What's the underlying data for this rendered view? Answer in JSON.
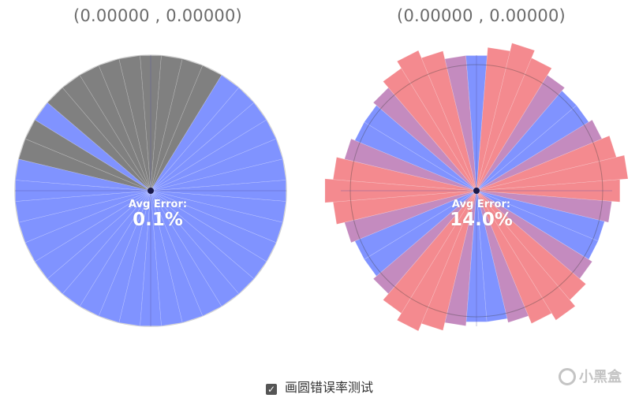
{
  "left_panel": {
    "coordinates": "(0.00000 , 0.00000)",
    "error_title": "Avg Error:",
    "error_value": "0.1%"
  },
  "right_panel": {
    "coordinates": "(0.00000 , 0.00000)",
    "error_title": "Avg Error:",
    "error_value": "14.0%"
  },
  "checkbox": {
    "label": "画圆错误率测试",
    "checked": true
  },
  "watermark": {
    "text": "小黑盒"
  },
  "colors": {
    "blue": "#8093ff",
    "gray": "#808080",
    "red": "#f48a8f",
    "violet": "#c48bbf",
    "center_dot": "#1a1a4a"
  },
  "left_wheel": {
    "sectors": [
      "gray",
      "gray",
      "gray",
      "gray",
      "blue",
      "blue",
      "blue",
      "blue",
      "blue",
      "blue",
      "blue",
      "blue",
      "blue",
      "blue",
      "blue",
      "blue",
      "blue",
      "blue",
      "blue",
      "blue",
      "blue",
      "blue",
      "blue",
      "blue",
      "blue",
      "blue",
      "blue",
      "blue",
      "blue",
      "blue",
      "blue",
      "blue",
      "gray",
      "gray",
      "blue",
      "gray",
      "gray",
      "gray",
      "gray",
      "gray"
    ],
    "radius_scale": [
      1,
      1,
      1,
      1,
      1,
      1,
      1,
      1,
      1,
      1,
      1,
      1,
      1,
      1,
      1,
      1,
      1,
      1,
      1,
      1,
      1,
      1,
      1,
      1,
      1,
      1,
      1,
      1,
      1,
      1,
      1,
      1,
      1,
      1,
      1,
      1,
      1,
      1,
      1,
      1
    ]
  },
  "right_wheel": {
    "sectors": [
      "blue",
      "red",
      "red",
      "red",
      "violet",
      "blue",
      "blue",
      "violet",
      "red",
      "red",
      "red",
      "violet",
      "blue",
      "blue",
      "violet",
      "red",
      "red",
      "red",
      "violet",
      "blue",
      "blue",
      "violet",
      "red",
      "red",
      "red",
      "violet",
      "blue",
      "blue",
      "violet",
      "red",
      "red",
      "red",
      "violet",
      "blue",
      "blue",
      "violet",
      "red",
      "red",
      "red",
      "violet"
    ],
    "radius_scale": [
      1.0,
      1.06,
      1.12,
      1.06,
      1.0,
      0.97,
      0.97,
      1.0,
      1.06,
      1.12,
      1.06,
      1.0,
      0.97,
      0.97,
      1.0,
      1.06,
      1.12,
      1.06,
      1.0,
      0.97,
      0.97,
      1.0,
      1.06,
      1.12,
      1.06,
      1.0,
      0.97,
      0.97,
      1.0,
      1.06,
      1.12,
      1.06,
      1.0,
      0.97,
      0.97,
      1.0,
      1.06,
      1.12,
      1.06,
      1.0
    ]
  }
}
